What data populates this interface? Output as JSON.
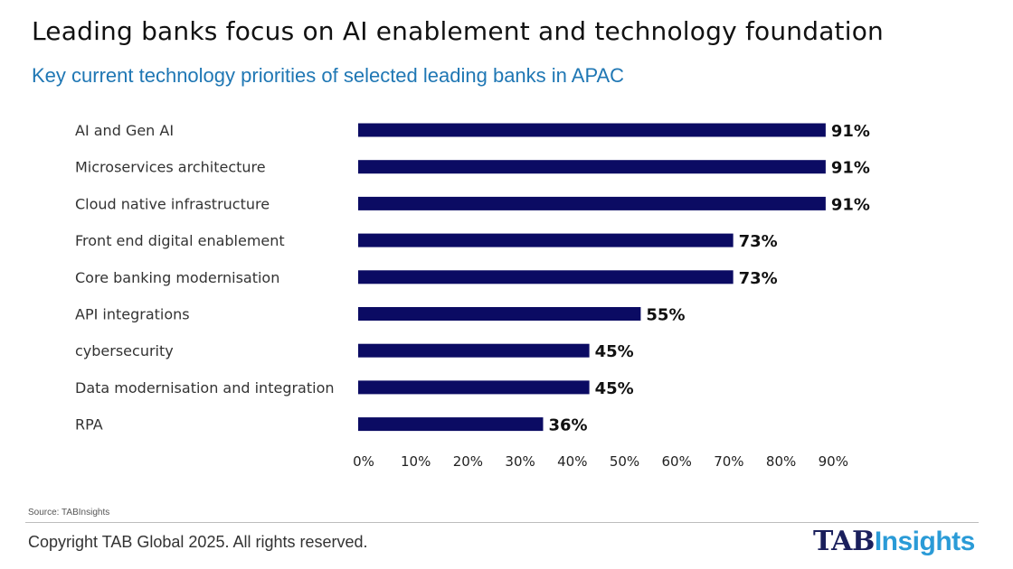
{
  "header": {
    "title": "Leading banks focus on AI enablement and technology foundation",
    "subtitle": "Key current technology priorities of selected leading banks in APAC"
  },
  "chart_data": {
    "type": "bar",
    "orientation": "horizontal",
    "categories": [
      "AI and Gen AI",
      "Microservices architecture",
      "Cloud native infrastructure",
      "Front end digital enablement",
      "Core banking modernisation",
      "API integrations",
      "cybersecurity",
      "Data modernisation and integration",
      "RPA"
    ],
    "values": [
      91,
      91,
      91,
      73,
      73,
      55,
      45,
      45,
      36
    ],
    "value_labels": [
      "91%",
      "91%",
      "91%",
      "73%",
      "73%",
      "55%",
      "45%",
      "45%",
      "36%"
    ],
    "x_ticks": [
      "0%",
      "10%",
      "20%",
      "30%",
      "40%",
      "50%",
      "60%",
      "70%",
      "80%",
      "90%"
    ],
    "xlim": [
      0,
      90
    ],
    "grid": false,
    "bar_color": "#0b0b63"
  },
  "footer": {
    "source": "Source: TABInsights",
    "copyright": "Copyright TAB Global 2025. All rights reserved.",
    "logo_part1": "TAB",
    "logo_part2": "Insights"
  }
}
